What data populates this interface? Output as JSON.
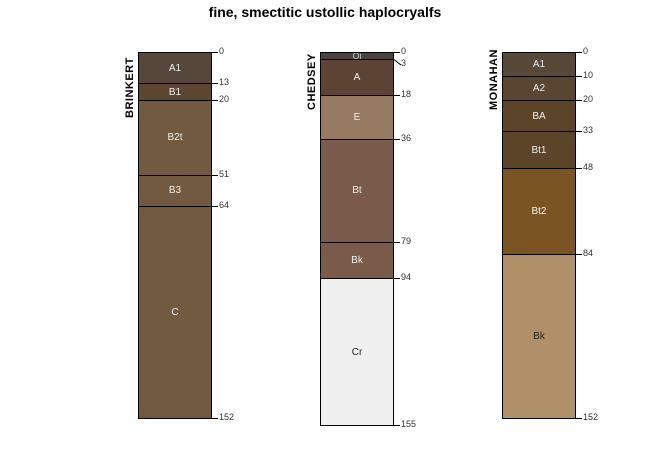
{
  "title": "fine, smectitic ustollic haplocryalfs",
  "profiles": [
    {
      "name": "BRINKERT",
      "bottom": 152,
      "horizons": [
        {
          "name": "A1",
          "top": 0,
          "bottom": 13,
          "color": "#56473a",
          "text": "#eeeeee"
        },
        {
          "name": "B1",
          "top": 13,
          "bottom": 20,
          "color": "#5c4630",
          "text": "#eeeeee"
        },
        {
          "name": "B2t",
          "top": 20,
          "bottom": 51,
          "color": "#715a40",
          "text": "#eeeeee"
        },
        {
          "name": "B3",
          "top": 51,
          "bottom": 64,
          "color": "#715a40",
          "text": "#eeeeee"
        },
        {
          "name": "C",
          "top": 64,
          "bottom": 152,
          "color": "#715a40",
          "text": "#eeeeee"
        }
      ],
      "depth_labels": [
        "0",
        "13",
        "20",
        "51",
        "64",
        "152"
      ]
    },
    {
      "name": "CHEDSEY",
      "bottom": 155,
      "horizons": [
        {
          "name": "Oi",
          "top": 0,
          "bottom": 3,
          "color": "#4a4440",
          "text": "#cccccc"
        },
        {
          "name": "A",
          "top": 3,
          "bottom": 18,
          "color": "#5c4333",
          "text": "#eeeeee"
        },
        {
          "name": "E",
          "top": 18,
          "bottom": 36,
          "color": "#967a62",
          "text": "#eeeeee"
        },
        {
          "name": "Bt",
          "top": 36,
          "bottom": 79,
          "color": "#7a5a4a",
          "text": "#eeeeee"
        },
        {
          "name": "Bk",
          "top": 79,
          "bottom": 94,
          "color": "#7a5a48",
          "text": "#eeeeee"
        },
        {
          "name": "Cr",
          "top": 94,
          "bottom": 155,
          "color": "#f0f0f0",
          "text": "#222222"
        }
      ],
      "depth_labels": [
        "0",
        "3",
        "18",
        "36",
        "79",
        "94",
        "155"
      ]
    },
    {
      "name": "MONAHAN",
      "bottom": 152,
      "horizons": [
        {
          "name": "A1",
          "top": 0,
          "bottom": 10,
          "color": "#574838",
          "text": "#eeeeee"
        },
        {
          "name": "A2",
          "top": 10,
          "bottom": 20,
          "color": "#5a4630",
          "text": "#eeeeee"
        },
        {
          "name": "BA",
          "top": 20,
          "bottom": 33,
          "color": "#5c4429",
          "text": "#eeeeee"
        },
        {
          "name": "Bt1",
          "top": 33,
          "bottom": 48,
          "color": "#5c4429",
          "text": "#eeeeee"
        },
        {
          "name": "Bt2",
          "top": 48,
          "bottom": 84,
          "color": "#7a5523",
          "text": "#eeeeee"
        },
        {
          "name": "Bk",
          "top": 84,
          "bottom": 152,
          "color": "#b09068",
          "text": "#222222"
        }
      ],
      "depth_labels": [
        "0",
        "10",
        "20",
        "33",
        "48",
        "84",
        "152"
      ]
    }
  ]
}
